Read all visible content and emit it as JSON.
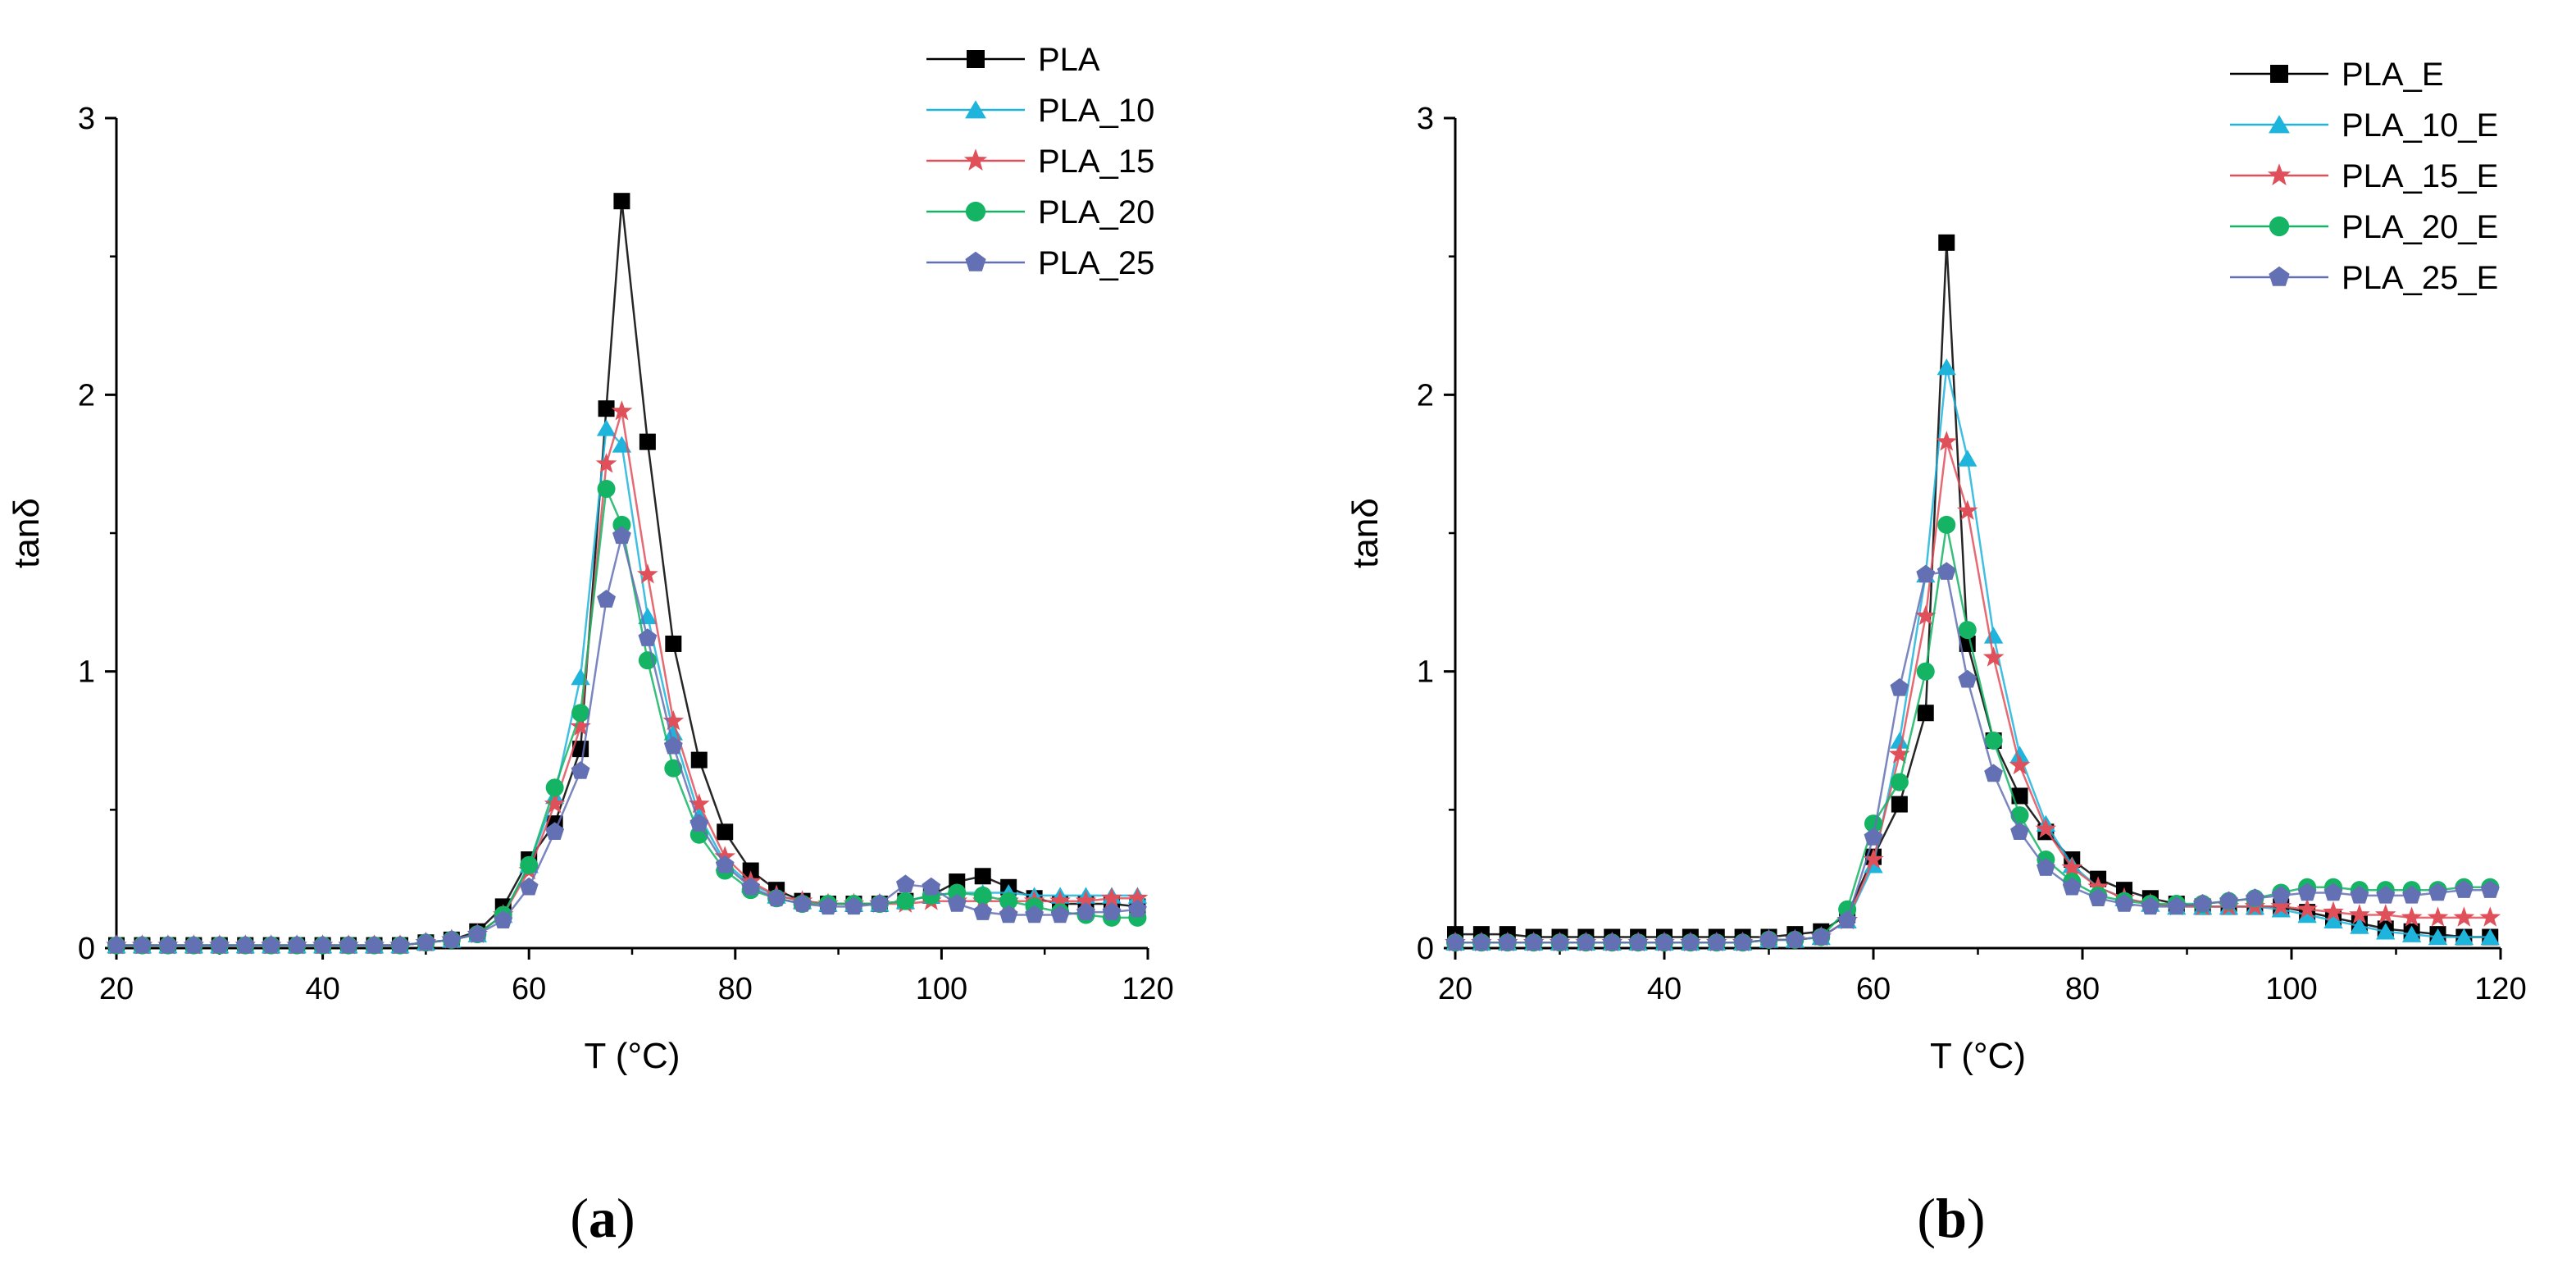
{
  "figure": {
    "panel_labels": [
      {
        "open": "(",
        "letter": "a",
        "close": ")"
      },
      {
        "open": "(",
        "letter": "b",
        "close": ")"
      }
    ]
  },
  "chart_data": [
    {
      "type": "line",
      "panel": "a",
      "xlabel": "T (°C)",
      "ylabel": "tanδ",
      "xlim": [
        20,
        120
      ],
      "ylim": [
        0,
        3
      ],
      "xticks": [
        20,
        40,
        60,
        80,
        100,
        120
      ],
      "yticks": [
        0,
        1,
        2,
        3
      ],
      "legend_position": "top-right",
      "x": [
        20,
        22.5,
        25,
        27.5,
        30,
        32.5,
        35,
        37.5,
        40,
        42.5,
        45,
        47.5,
        50,
        52.5,
        55,
        57.5,
        60,
        62.5,
        65,
        67.5,
        69,
        71.5,
        74,
        76.5,
        79,
        81.5,
        84,
        86.5,
        89,
        91.5,
        94,
        96.5,
        99,
        101.5,
        104,
        106.5,
        109,
        111.5,
        114,
        116.5,
        119
      ],
      "series": [
        {
          "name": "PLA",
          "color": "#000000",
          "marker": "square",
          "values": [
            0.01,
            0.01,
            0.01,
            0.01,
            0.01,
            0.01,
            0.01,
            0.01,
            0.01,
            0.01,
            0.01,
            0.01,
            0.02,
            0.03,
            0.06,
            0.15,
            0.32,
            0.45,
            0.72,
            1.95,
            2.7,
            1.83,
            1.1,
            0.68,
            0.42,
            0.28,
            0.21,
            0.17,
            0.16,
            0.16,
            0.16,
            0.17,
            0.19,
            0.24,
            0.26,
            0.22,
            0.18,
            0.16,
            0.16,
            0.16,
            0.15
          ]
        },
        {
          "name": "PLA_10",
          "color": "#1eb4dc",
          "marker": "triangle",
          "values": [
            0.01,
            0.01,
            0.01,
            0.01,
            0.01,
            0.01,
            0.01,
            0.01,
            0.01,
            0.01,
            0.01,
            0.01,
            0.02,
            0.03,
            0.05,
            0.12,
            0.3,
            0.55,
            0.98,
            1.88,
            1.82,
            1.2,
            0.78,
            0.48,
            0.31,
            0.23,
            0.19,
            0.17,
            0.16,
            0.16,
            0.16,
            0.17,
            0.19,
            0.2,
            0.2,
            0.2,
            0.19,
            0.19,
            0.19,
            0.19,
            0.19
          ]
        },
        {
          "name": "PLA_15",
          "color": "#e0505a",
          "marker": "star",
          "values": [
            0.01,
            0.01,
            0.01,
            0.01,
            0.01,
            0.01,
            0.01,
            0.01,
            0.01,
            0.01,
            0.01,
            0.01,
            0.02,
            0.03,
            0.05,
            0.12,
            0.28,
            0.52,
            0.8,
            1.75,
            1.94,
            1.35,
            0.82,
            0.52,
            0.33,
            0.24,
            0.19,
            0.17,
            0.16,
            0.16,
            0.16,
            0.16,
            0.17,
            0.17,
            0.17,
            0.17,
            0.17,
            0.17,
            0.17,
            0.18,
            0.18
          ]
        },
        {
          "name": "PLA_20",
          "color": "#14b464",
          "marker": "circle",
          "values": [
            0.01,
            0.01,
            0.01,
            0.01,
            0.01,
            0.01,
            0.01,
            0.01,
            0.01,
            0.01,
            0.01,
            0.01,
            0.02,
            0.03,
            0.05,
            0.12,
            0.3,
            0.58,
            0.85,
            1.66,
            1.53,
            1.04,
            0.65,
            0.41,
            0.28,
            0.21,
            0.18,
            0.16,
            0.16,
            0.16,
            0.16,
            0.17,
            0.19,
            0.2,
            0.19,
            0.17,
            0.15,
            0.13,
            0.12,
            0.11,
            0.11
          ]
        },
        {
          "name": "PLA_25",
          "color": "#6470b4",
          "marker": "pentagon",
          "values": [
            0.01,
            0.01,
            0.01,
            0.01,
            0.01,
            0.01,
            0.01,
            0.01,
            0.01,
            0.01,
            0.01,
            0.01,
            0.02,
            0.03,
            0.05,
            0.1,
            0.22,
            0.42,
            0.64,
            1.26,
            1.49,
            1.12,
            0.73,
            0.45,
            0.3,
            0.22,
            0.18,
            0.16,
            0.15,
            0.15,
            0.16,
            0.23,
            0.22,
            0.16,
            0.13,
            0.12,
            0.12,
            0.12,
            0.13,
            0.13,
            0.14
          ]
        }
      ]
    },
    {
      "type": "line",
      "panel": "b",
      "xlabel": "T (°C)",
      "ylabel": "tanδ",
      "xlim": [
        20,
        120
      ],
      "ylim": [
        0,
        3
      ],
      "xticks": [
        20,
        40,
        60,
        80,
        100,
        120
      ],
      "yticks": [
        0,
        1,
        2,
        3
      ],
      "legend_position": "top-right",
      "x": [
        20,
        22.5,
        25,
        27.5,
        30,
        32.5,
        35,
        37.5,
        40,
        42.5,
        45,
        47.5,
        50,
        52.5,
        55,
        57.5,
        60,
        62.5,
        65,
        67,
        69,
        71.5,
        74,
        76.5,
        79,
        81.5,
        84,
        86.5,
        89,
        91.5,
        94,
        96.5,
        99,
        101.5,
        104,
        106.5,
        109,
        111.5,
        114,
        116.5,
        119
      ],
      "series": [
        {
          "name": "PLA_E",
          "color": "#000000",
          "marker": "square",
          "values": [
            0.05,
            0.05,
            0.05,
            0.04,
            0.04,
            0.04,
            0.04,
            0.04,
            0.04,
            0.04,
            0.04,
            0.04,
            0.04,
            0.05,
            0.06,
            0.12,
            0.33,
            0.52,
            0.85,
            2.55,
            1.1,
            0.75,
            0.55,
            0.42,
            0.32,
            0.25,
            0.21,
            0.18,
            0.16,
            0.15,
            0.15,
            0.15,
            0.15,
            0.13,
            0.11,
            0.09,
            0.07,
            0.06,
            0.05,
            0.04,
            0.04
          ]
        },
        {
          "name": "PLA_10_E",
          "color": "#1eb4dc",
          "marker": "triangle",
          "values": [
            0.02,
            0.02,
            0.02,
            0.02,
            0.02,
            0.02,
            0.02,
            0.02,
            0.02,
            0.02,
            0.02,
            0.02,
            0.03,
            0.03,
            0.04,
            0.1,
            0.3,
            0.75,
            1.35,
            2.1,
            1.77,
            1.13,
            0.7,
            0.45,
            0.3,
            0.22,
            0.18,
            0.16,
            0.15,
            0.15,
            0.15,
            0.15,
            0.14,
            0.12,
            0.1,
            0.08,
            0.06,
            0.05,
            0.04,
            0.04,
            0.04
          ]
        },
        {
          "name": "PLA_15_E",
          "color": "#e0505a",
          "marker": "star",
          "values": [
            0.02,
            0.02,
            0.02,
            0.02,
            0.02,
            0.02,
            0.02,
            0.02,
            0.02,
            0.02,
            0.02,
            0.02,
            0.03,
            0.03,
            0.04,
            0.1,
            0.32,
            0.7,
            1.2,
            1.83,
            1.58,
            1.05,
            0.66,
            0.43,
            0.29,
            0.22,
            0.18,
            0.16,
            0.15,
            0.15,
            0.15,
            0.15,
            0.15,
            0.14,
            0.13,
            0.12,
            0.12,
            0.11,
            0.11,
            0.11,
            0.11
          ]
        },
        {
          "name": "PLA_20_E",
          "color": "#14b464",
          "marker": "circle",
          "values": [
            0.02,
            0.02,
            0.02,
            0.02,
            0.02,
            0.02,
            0.02,
            0.02,
            0.02,
            0.02,
            0.02,
            0.02,
            0.03,
            0.03,
            0.04,
            0.14,
            0.45,
            0.6,
            1.0,
            1.53,
            1.15,
            0.75,
            0.48,
            0.32,
            0.24,
            0.19,
            0.17,
            0.16,
            0.16,
            0.16,
            0.17,
            0.18,
            0.2,
            0.22,
            0.22,
            0.21,
            0.21,
            0.21,
            0.21,
            0.22,
            0.22
          ]
        },
        {
          "name": "PLA_25_E",
          "color": "#6470b4",
          "marker": "pentagon",
          "values": [
            0.02,
            0.02,
            0.02,
            0.02,
            0.02,
            0.02,
            0.02,
            0.02,
            0.02,
            0.02,
            0.02,
            0.02,
            0.03,
            0.03,
            0.04,
            0.1,
            0.4,
            0.94,
            1.35,
            1.36,
            0.97,
            0.63,
            0.42,
            0.29,
            0.22,
            0.18,
            0.16,
            0.15,
            0.15,
            0.16,
            0.17,
            0.18,
            0.19,
            0.2,
            0.2,
            0.19,
            0.19,
            0.19,
            0.2,
            0.21,
            0.21
          ]
        }
      ]
    }
  ]
}
